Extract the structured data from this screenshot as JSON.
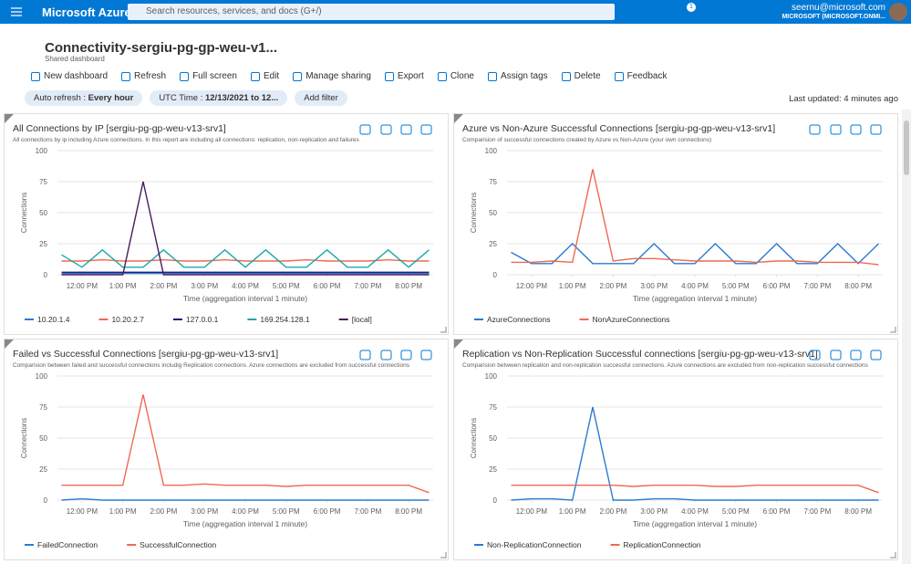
{
  "header": {
    "brand": "Microsoft Azure",
    "search": "Search resources, services, and docs (G+/)",
    "notifications": "1",
    "user": "seernu@microsoft.com",
    "tenant": "MICROSOFT (MICROSOFT.ONMI..."
  },
  "dashboard": {
    "title": "Connectivity-sergiu-pg-gp-weu-v1...",
    "subtitle": "Shared dashboard",
    "toolbar": [
      "New dashboard",
      "Refresh",
      "Full screen",
      "Edit",
      "Manage sharing",
      "Export",
      "Clone",
      "Assign tags",
      "Delete",
      "Feedback"
    ],
    "filters": [
      {
        "label": "Auto refresh :",
        "value": "Every hour"
      },
      {
        "label": "UTC Time :",
        "value": "12/13/2021 to 12..."
      }
    ],
    "add_filter": "Add filter",
    "last_updated": "Last updated: 4 minutes ago"
  },
  "chart_data": [
    {
      "type": "line",
      "title": "All Connections by IP [sergiu-pg-gp-weu-v13-srv1]",
      "subtitle": "All connections by ip including Azure connections. In this report are including all connections: replication, non-replication and failures",
      "x_label": "Time (aggregation interval 1 minute)",
      "y_label": "Connections",
      "x": [
        11.5,
        12,
        12.5,
        13,
        13.5,
        14,
        14.5,
        15,
        15.5,
        16,
        16.5,
        17,
        17.5,
        18,
        18.5,
        19,
        19.5,
        20,
        20.5
      ],
      "xlim": [
        11.4,
        20.6
      ],
      "xticks": [
        {
          "value": 12,
          "label": "12:00 PM"
        },
        {
          "value": 13,
          "label": "1:00 PM"
        },
        {
          "value": 14,
          "label": "2:00 PM"
        },
        {
          "value": 15,
          "label": "3:00 PM"
        },
        {
          "value": 16,
          "label": "4:00 PM"
        },
        {
          "value": 17,
          "label": "5:00 PM"
        },
        {
          "value": 18,
          "label": "6:00 PM"
        },
        {
          "value": 19,
          "label": "7:00 PM"
        },
        {
          "value": 20,
          "label": "8:00 PM"
        }
      ],
      "ylim": [
        0,
        100
      ],
      "yticks": [
        0,
        25,
        50,
        75,
        100
      ],
      "grid": true,
      "series": [
        {
          "name": "10.20.1.4",
          "color": "#2b7bd1",
          "values": [
            1,
            1,
            1,
            1,
            1,
            1,
            1,
            1,
            1,
            1,
            1,
            1,
            1,
            1,
            1,
            1,
            1,
            1,
            1
          ]
        },
        {
          "name": "10.20.2.7",
          "color": "#ef6950",
          "values": [
            11,
            11,
            12,
            11,
            11,
            12,
            11,
            11,
            12,
            11,
            11,
            11,
            12,
            11,
            11,
            11,
            12,
            11,
            11
          ]
        },
        {
          "name": "127.0.0.1",
          "color": "#1f1f7a",
          "values": [
            2,
            2,
            2,
            2,
            2,
            2,
            2,
            2,
            2,
            2,
            2,
            2,
            2,
            2,
            2,
            2,
            2,
            2,
            2
          ]
        },
        {
          "name": "169.254.128.1",
          "color": "#1ea8a8",
          "values": [
            16,
            6,
            20,
            6,
            6,
            20,
            6,
            6,
            20,
            6,
            20,
            6,
            6,
            20,
            6,
            6,
            20,
            6,
            20
          ]
        },
        {
          "name": "[local]",
          "color": "#4b1a5e",
          "values": [
            0,
            0,
            0,
            0,
            75,
            0,
            0,
            0,
            0,
            0,
            0,
            0,
            0,
            0,
            0,
            0,
            0,
            0,
            0
          ]
        }
      ]
    },
    {
      "type": "line",
      "title": "Azure vs Non-Azure Successful Connections [sergiu-pg-gp-weu-v13-srv1]",
      "subtitle": "Comparision of successful connections created by Azure vs Non-Azure (your own connections)",
      "x_label": "Time (aggregation interval 1 minute)",
      "y_label": "Connections",
      "x": [
        11.5,
        12,
        12.5,
        13,
        13.5,
        14,
        14.5,
        15,
        15.5,
        16,
        16.5,
        17,
        17.5,
        18,
        18.5,
        19,
        19.5,
        20,
        20.5
      ],
      "xlim": [
        11.4,
        20.6
      ],
      "xticks": [
        {
          "value": 12,
          "label": "12:00 PM"
        },
        {
          "value": 13,
          "label": "1:00 PM"
        },
        {
          "value": 14,
          "label": "2:00 PM"
        },
        {
          "value": 15,
          "label": "3:00 PM"
        },
        {
          "value": 16,
          "label": "4:00 PM"
        },
        {
          "value": 17,
          "label": "5:00 PM"
        },
        {
          "value": 18,
          "label": "6:00 PM"
        },
        {
          "value": 19,
          "label": "7:00 PM"
        },
        {
          "value": 20,
          "label": "8:00 PM"
        }
      ],
      "ylim": [
        0,
        100
      ],
      "yticks": [
        0,
        25,
        50,
        75,
        100
      ],
      "grid": true,
      "series": [
        {
          "name": "AzureConnections",
          "color": "#2b7bd1",
          "values": [
            18,
            9,
            9,
            25,
            9,
            9,
            9,
            25,
            9,
            9,
            25,
            9,
            9,
            25,
            9,
            9,
            25,
            9,
            25
          ]
        },
        {
          "name": "NonAzureConnections",
          "color": "#ef6950",
          "values": [
            10,
            10,
            11,
            10,
            85,
            11,
            13,
            13,
            12,
            11,
            11,
            11,
            10,
            11,
            11,
            10,
            10,
            10,
            8
          ]
        }
      ]
    },
    {
      "type": "line",
      "title": "Failed vs Successful Connections [sergiu-pg-gp-weu-v13-srv1]",
      "subtitle": "Comparision between failed and successful connections includig Replication connections. Azure connections are excluded from successful connections",
      "x_label": "Time (aggregation interval 1 minute)",
      "y_label": "Connections",
      "x": [
        11.5,
        12,
        12.5,
        13,
        13.5,
        14,
        14.5,
        15,
        15.5,
        16,
        16.5,
        17,
        17.5,
        18,
        18.5,
        19,
        19.5,
        20,
        20.5
      ],
      "xlim": [
        11.4,
        20.6
      ],
      "xticks": [
        {
          "value": 12,
          "label": "12:00 PM"
        },
        {
          "value": 13,
          "label": "1:00 PM"
        },
        {
          "value": 14,
          "label": "2:00 PM"
        },
        {
          "value": 15,
          "label": "3:00 PM"
        },
        {
          "value": 16,
          "label": "4:00 PM"
        },
        {
          "value": 17,
          "label": "5:00 PM"
        },
        {
          "value": 18,
          "label": "6:00 PM"
        },
        {
          "value": 19,
          "label": "7:00 PM"
        },
        {
          "value": 20,
          "label": "8:00 PM"
        }
      ],
      "ylim": [
        0,
        100
      ],
      "yticks": [
        0,
        25,
        50,
        75,
        100
      ],
      "grid": true,
      "series": [
        {
          "name": "FailedConnection",
          "color": "#2b7bd1",
          "values": [
            0,
            1,
            0,
            0,
            0,
            0,
            0,
            0,
            0,
            0,
            0,
            0,
            0,
            0,
            0,
            0,
            0,
            0,
            0
          ]
        },
        {
          "name": "SuccessfulConnection",
          "color": "#ef6950",
          "values": [
            12,
            12,
            12,
            12,
            85,
            12,
            12,
            13,
            12,
            12,
            12,
            11,
            12,
            12,
            12,
            12,
            12,
            12,
            6
          ]
        }
      ]
    },
    {
      "type": "line",
      "title": "Replication vs Non-Replication Successful connections [sergiu-pg-gp-weu-v13-srv1]",
      "subtitle": "Comparision betwwen replication and non-replication successful connections. Azure connections are excluded from non-replication successful connections",
      "x_label": "Time (aggregation interval 1 minute)",
      "y_label": "Connections",
      "x": [
        11.5,
        12,
        12.5,
        13,
        13.5,
        14,
        14.5,
        15,
        15.5,
        16,
        16.5,
        17,
        17.5,
        18,
        18.5,
        19,
        19.5,
        20,
        20.5
      ],
      "xlim": [
        11.4,
        20.6
      ],
      "xticks": [
        {
          "value": 12,
          "label": "12:00 PM"
        },
        {
          "value": 13,
          "label": "1:00 PM"
        },
        {
          "value": 14,
          "label": "2:00 PM"
        },
        {
          "value": 15,
          "label": "3:00 PM"
        },
        {
          "value": 16,
          "label": "4:00 PM"
        },
        {
          "value": 17,
          "label": "5:00 PM"
        },
        {
          "value": 18,
          "label": "6:00 PM"
        },
        {
          "value": 19,
          "label": "7:00 PM"
        },
        {
          "value": 20,
          "label": "8:00 PM"
        }
      ],
      "ylim": [
        0,
        100
      ],
      "yticks": [
        0,
        25,
        50,
        75,
        100
      ],
      "grid": true,
      "series": [
        {
          "name": "Non-ReplicationConnection",
          "color": "#2b7bd1",
          "values": [
            0,
            1,
            1,
            0,
            75,
            0,
            0,
            1,
            1,
            0,
            0,
            0,
            0,
            0,
            0,
            0,
            0,
            0,
            0
          ]
        },
        {
          "name": "ReplicationConnection",
          "color": "#ef6950",
          "values": [
            12,
            12,
            12,
            12,
            12,
            12,
            11,
            12,
            12,
            12,
            11,
            11,
            12,
            12,
            12,
            12,
            12,
            12,
            6
          ]
        }
      ]
    }
  ]
}
